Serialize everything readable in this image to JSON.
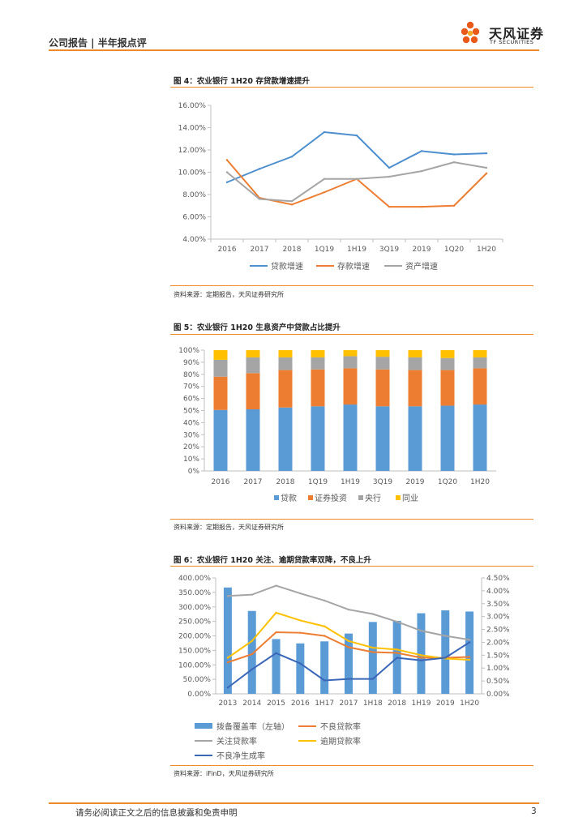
{
  "header": {
    "left": "公司报告 | 半年报点评",
    "logo_name": "天风证券",
    "logo_sub": "TF SECURITIES"
  },
  "figures": [
    {
      "title": "图 4：农业银行 1H20 存贷款增速提升",
      "source": "资料来源：定期报告，天风证券研究所"
    },
    {
      "title": "图 5：农业银行 1H20 生息资产中贷款占比提升",
      "source": "资料来源：定期报告，天风证券研究所"
    },
    {
      "title": "图 6：农业银行 1H20 关注、逾期贷款率双降，不良上升",
      "source": "资料来源：iFinD，天风证券研究所"
    }
  ],
  "footer": {
    "disclaimer": "请务必阅读正文之后的信息披露和免责申明",
    "page": "3"
  },
  "colors": {
    "accent": "#ee8a2a",
    "blue": "#4e8fcd",
    "orange": "#ed7d31",
    "gray": "#a5a5a5",
    "yellow": "#ffc000",
    "bar_blue": "#5b9bd5",
    "navy": "#3a66b8"
  },
  "chart_data": [
    {
      "type": "line",
      "categories": [
        "2016",
        "2017",
        "2018",
        "1Q19",
        "1H19",
        "3Q19",
        "2019",
        "1Q20",
        "1H20"
      ],
      "ylim": [
        4,
        16
      ],
      "yticks": [
        "4.00%",
        "6.00%",
        "8.00%",
        "10.00%",
        "12.00%",
        "14.00%",
        "16.00%"
      ],
      "series": [
        {
          "name": "贷款增速",
          "color": "#4e8fcd",
          "values": [
            9.1,
            10.3,
            11.4,
            13.6,
            13.3,
            10.4,
            11.9,
            11.6,
            11.7
          ]
        },
        {
          "name": "存款增速",
          "color": "#ed7d31",
          "values": [
            11.1,
            7.7,
            7.1,
            8.2,
            9.4,
            6.9,
            6.9,
            7.0,
            9.9
          ]
        },
        {
          "name": "资产增速",
          "color": "#a5a5a5",
          "values": [
            10.0,
            7.6,
            7.4,
            9.4,
            9.4,
            9.6,
            10.1,
            10.9,
            10.4
          ]
        }
      ],
      "legend_position": "bottom"
    },
    {
      "type": "bar",
      "stacked": true,
      "categories": [
        "2016",
        "2017",
        "2018",
        "1Q19",
        "1H19",
        "3Q19",
        "2019",
        "1Q20",
        "1H20"
      ],
      "ylim": [
        0,
        100
      ],
      "yticks": [
        "0%",
        "10%",
        "20%",
        "30%",
        "40%",
        "50%",
        "60%",
        "70%",
        "80%",
        "90%",
        "100%"
      ],
      "series": [
        {
          "name": "贷款",
          "color": "#5b9bd5",
          "values": [
            50.5,
            51.0,
            52.5,
            53.5,
            55.0,
            53.5,
            53.5,
            54.0,
            55.0
          ]
        },
        {
          "name": "证券投资",
          "color": "#ed7d31",
          "values": [
            27.5,
            30.0,
            31.0,
            30.5,
            30.0,
            30.5,
            30.0,
            29.5,
            30.0
          ]
        },
        {
          "name": "央行",
          "color": "#a5a5a5",
          "values": [
            14.0,
            13.0,
            10.5,
            10.0,
            10.0,
            10.5,
            10.5,
            10.0,
            9.0
          ]
        },
        {
          "name": "同业",
          "color": "#ffc000",
          "values": [
            8.0,
            6.0,
            6.0,
            6.0,
            5.0,
            5.5,
            6.0,
            6.5,
            6.0
          ]
        }
      ],
      "legend_position": "bottom"
    },
    {
      "type": "bar",
      "categories": [
        "2013",
        "2014",
        "2015",
        "2016",
        "1H17",
        "2017",
        "1H18",
        "2018",
        "1H19",
        "2019",
        "1H20"
      ],
      "ylim_left": [
        0,
        400
      ],
      "ylim_right": [
        0,
        4.5
      ],
      "yticks_left": [
        "0.00%",
        "50.00%",
        "100.00%",
        "150.00%",
        "200.00%",
        "250.00%",
        "300.00%",
        "350.00%",
        "400.00%"
      ],
      "yticks_right": [
        "0.00%",
        "0.50%",
        "1.00%",
        "1.50%",
        "2.00%",
        "2.50%",
        "3.00%",
        "3.50%",
        "4.00%",
        "4.50%"
      ],
      "bar_series": {
        "name": "拨备覆盖率（左轴）",
        "color": "#5b9bd5",
        "values": [
          367,
          286,
          189,
          174,
          181,
          208,
          248,
          252,
          278,
          288,
          284
        ]
      },
      "line_series": [
        {
          "name": "不良贷款率",
          "color": "#ed7d31",
          "values": [
            1.22,
            1.54,
            2.39,
            2.37,
            2.25,
            1.81,
            1.62,
            1.59,
            1.4,
            1.4,
            1.43
          ]
        },
        {
          "name": "关注贷款率",
          "color": "#a5a5a5",
          "values": [
            3.8,
            3.85,
            4.2,
            3.9,
            3.62,
            3.27,
            3.1,
            2.8,
            2.45,
            2.25,
            2.1
          ]
        },
        {
          "name": "逾期贷款率",
          "color": "#ffc000",
          "values": [
            1.4,
            2.05,
            3.15,
            2.85,
            2.62,
            2.05,
            1.79,
            1.72,
            1.5,
            1.37,
            1.32
          ]
        },
        {
          "name": "不良净生成率",
          "color": "#3a66b8",
          "values": [
            0.24,
            0.95,
            1.58,
            1.18,
            0.52,
            0.58,
            0.58,
            1.4,
            1.3,
            1.4,
            2.0
          ]
        }
      ],
      "legend_position": "bottom"
    }
  ]
}
